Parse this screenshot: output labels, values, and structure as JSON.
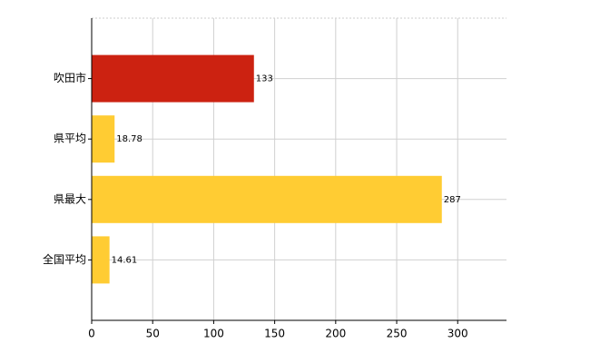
{
  "chart_data": {
    "type": "hbar",
    "categories": [
      "吹田市",
      "県平均",
      "県最大",
      "全国平均"
    ],
    "values": [
      133,
      18.78,
      287,
      14.61
    ],
    "colors": [
      "#cc2211",
      "#ffcc33",
      "#ffcc33",
      "#ffcc33"
    ],
    "xlim": [
      0,
      340
    ],
    "xticks": [
      0,
      50,
      100,
      150,
      200,
      250,
      300
    ],
    "grid": true
  }
}
